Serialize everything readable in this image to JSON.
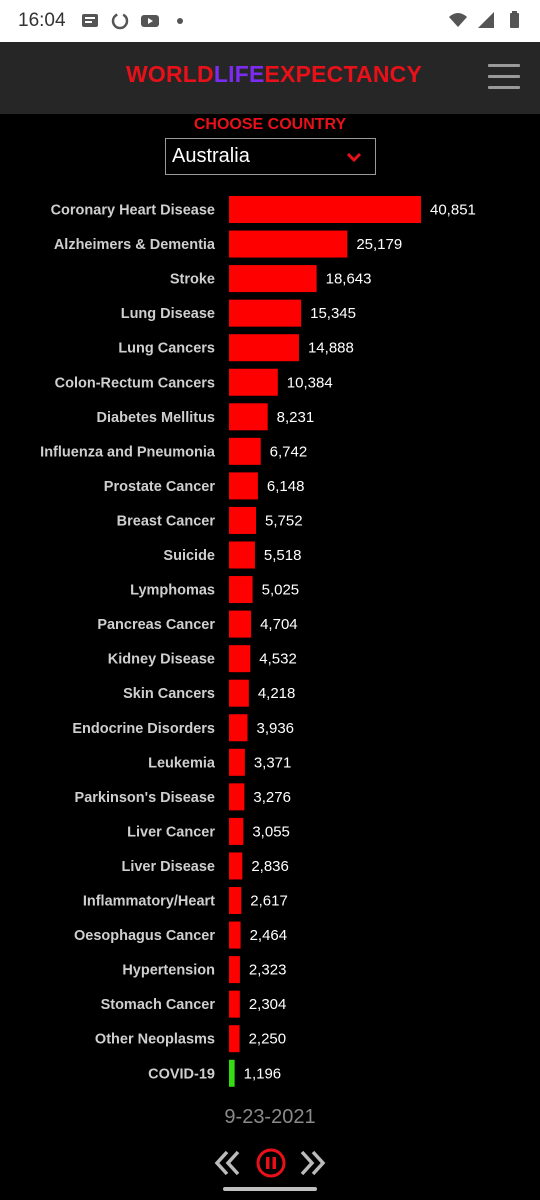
{
  "status_bar": {
    "time": "16:04",
    "left_icons": [
      "message-icon",
      "sync-icon",
      "youtube-icon",
      "dot-icon"
    ],
    "right_icons": [
      "wifi-icon",
      "signal-icon",
      "battery-icon"
    ]
  },
  "header": {
    "logo_part1": "WORLD",
    "logo_part2": "LIFE",
    "logo_part3": "EXPECTANCY",
    "menu_icon": "hamburger-menu-icon"
  },
  "selector": {
    "label": "CHOOSE COUNTRY",
    "value": "Australia"
  },
  "chart_data": {
    "type": "bar",
    "orientation": "horizontal",
    "categories": [
      "Coronary Heart Disease",
      "Alzheimers & Dementia",
      "Stroke",
      "Lung Disease",
      "Lung Cancers",
      "Colon-Rectum Cancers",
      "Diabetes Mellitus",
      "Influenza and Pneumonia",
      "Prostate Cancer",
      "Breast Cancer",
      "Suicide",
      "Lymphomas",
      "Pancreas Cancer",
      "Kidney Disease",
      "Skin Cancers",
      "Endocrine Disorders",
      "Leukemia",
      "Parkinson's Disease",
      "Liver Cancer",
      "Liver Disease",
      "Inflammatory/Heart",
      "Oesophagus Cancer",
      "Hypertension",
      "Stomach Cancer",
      "Other Neoplasms",
      "COVID-19"
    ],
    "values": [
      40851,
      25179,
      18643,
      15345,
      14888,
      10384,
      8231,
      6742,
      6148,
      5752,
      5518,
      5025,
      4704,
      4532,
      4218,
      3936,
      3371,
      3276,
      3055,
      2836,
      2617,
      2464,
      2323,
      2304,
      2250,
      1196
    ],
    "labels": [
      "40,851",
      "25,179",
      "18,643",
      "15,345",
      "14,888",
      "10,384",
      "8,231",
      "6,742",
      "6,148",
      "5,752",
      "5,518",
      "5,025",
      "4,704",
      "4,532",
      "4,218",
      "3,936",
      "3,371",
      "3,276",
      "3,055",
      "2,836",
      "2,617",
      "2,464",
      "2,323",
      "2,304",
      "2,250",
      "1,196"
    ],
    "bar_color": "#ff0000",
    "highlight_category": "COVID-19",
    "highlight_color": "#33dd11"
  },
  "footer": {
    "date": "9-23-2021",
    "controls": [
      "rewind-icon",
      "pause-icon",
      "fast-forward-icon"
    ]
  }
}
